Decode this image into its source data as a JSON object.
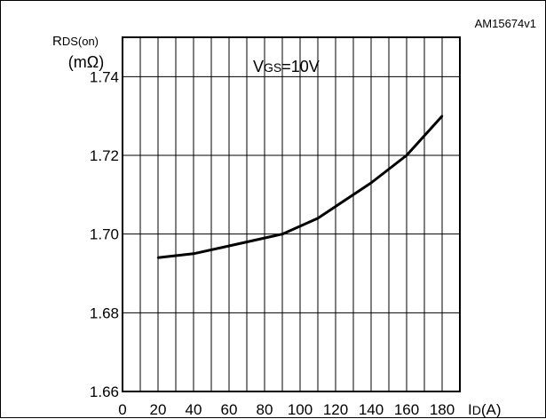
{
  "chart_data": {
    "type": "line",
    "id_code": "AM15674v1",
    "ylabel_main": "R",
    "ylabel_sub": "DS(on)",
    "yunit": "(mΩ)",
    "annotation_main": "V",
    "annotation_sub": "GS",
    "annotation_rest": "=10V",
    "xlabel_main": "I",
    "xlabel_sub": "D",
    "xlabel_rest": "(A)",
    "xlim": [
      0,
      190
    ],
    "ylim": [
      1.66,
      1.75
    ],
    "x_ticks": [
      "0",
      "20",
      "40",
      "60",
      "80",
      "100",
      "120",
      "140",
      "160",
      "180"
    ],
    "y_ticks": [
      "1.66",
      "1.68",
      "1.70",
      "1.72",
      "1.74"
    ],
    "grid": true,
    "series": [
      {
        "x": [
          20,
          40,
          60,
          80,
          90,
          110,
          140,
          160,
          180
        ],
        "y": [
          1.694,
          1.695,
          1.697,
          1.699,
          1.7,
          1.704,
          1.713,
          1.72,
          1.73
        ]
      }
    ]
  }
}
